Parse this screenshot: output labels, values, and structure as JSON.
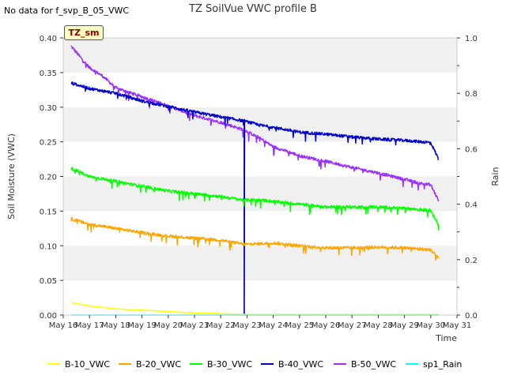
{
  "corner_note": "No data for f_svp_B_05_VWC",
  "station_badge": "TZ_sm",
  "chart_data": {
    "type": "line",
    "title": "TZ SoilVue VWC profile B",
    "xlabel": "Time",
    "ylabel": "Soil Moisture (VWC)",
    "y2label": "Rain",
    "ylim": [
      0,
      0.4
    ],
    "y2lim": [
      0,
      1.0
    ],
    "xlim": [
      16,
      31
    ],
    "x_ticks": [
      "May 16",
      "May 17",
      "May 18",
      "May 19",
      "May 20",
      "May 21",
      "May 22",
      "May 23",
      "May 24",
      "May 25",
      "May 26",
      "May 27",
      "May 28",
      "May 29",
      "May 30",
      "May 31"
    ],
    "y_ticks": [
      "0.00",
      "0.05",
      "0.10",
      "0.15",
      "0.20",
      "0.25",
      "0.30",
      "0.35",
      "0.40"
    ],
    "y2_ticks": [
      "0.0",
      "0.2",
      "0.4",
      "0.6",
      "0.8",
      "1.0"
    ],
    "grid": true,
    "legend_position": "bottom",
    "series": [
      {
        "name": "B-10_VWC",
        "color": "#ffff00",
        "axis": "left",
        "x": [
          16.3,
          17,
          18,
          19,
          20,
          21,
          22,
          22.9,
          23.5,
          25,
          27,
          29,
          30.3
        ],
        "values": [
          0.018,
          0.013,
          0.009,
          0.007,
          0.005,
          0.003,
          0.002,
          0.001,
          0.001,
          0.001,
          0.001,
          0.001,
          0.001
        ]
      },
      {
        "name": "B-20_VWC",
        "color": "#ffa500",
        "axis": "left",
        "x": [
          16.3,
          17,
          18,
          19,
          20,
          21,
          22,
          22.9,
          23.5,
          24,
          25,
          26,
          27,
          28,
          29,
          30,
          30.3
        ],
        "values": [
          0.139,
          0.131,
          0.125,
          0.119,
          0.114,
          0.111,
          0.108,
          0.102,
          0.103,
          0.104,
          0.1,
          0.097,
          0.097,
          0.098,
          0.097,
          0.094,
          0.083
        ]
      },
      {
        "name": "B-30_VWC",
        "color": "#00ff00",
        "axis": "left",
        "x": [
          16.3,
          17,
          18,
          19,
          20,
          21,
          22,
          22.9,
          23.5,
          24,
          25,
          26,
          27,
          28,
          29,
          30,
          30.3
        ],
        "values": [
          0.212,
          0.2,
          0.193,
          0.186,
          0.179,
          0.175,
          0.171,
          0.166,
          0.166,
          0.164,
          0.16,
          0.156,
          0.156,
          0.156,
          0.154,
          0.151,
          0.13
        ]
      },
      {
        "name": "B-40_VWC",
        "color": "#0000cd",
        "axis": "left",
        "x": [
          16.3,
          17,
          18,
          19,
          20,
          21,
          22,
          22.9,
          23.5,
          24,
          25,
          26,
          27,
          28,
          29,
          30,
          30.3
        ],
        "values": [
          0.335,
          0.327,
          0.32,
          0.309,
          0.301,
          0.293,
          0.286,
          0.28,
          0.274,
          0.271,
          0.264,
          0.261,
          0.257,
          0.254,
          0.252,
          0.249,
          0.225
        ]
      },
      {
        "name": "B-50_VWC",
        "color": "#9b30ff",
        "axis": "left",
        "x": [
          16.3,
          16.7,
          17,
          17.5,
          18,
          19,
          20,
          21,
          22,
          22.9,
          23.5,
          24,
          25,
          26,
          27,
          28,
          29,
          29.6,
          30,
          30.3
        ],
        "values": [
          0.388,
          0.37,
          0.357,
          0.345,
          0.328,
          0.315,
          0.302,
          0.288,
          0.278,
          0.267,
          0.255,
          0.243,
          0.23,
          0.222,
          0.213,
          0.205,
          0.196,
          0.19,
          0.188,
          0.165
        ]
      },
      {
        "name": "sp1_Rain",
        "color": "#00ffff",
        "axis": "right",
        "x": [
          16.3,
          30.3
        ],
        "values": [
          0,
          0
        ]
      }
    ]
  }
}
